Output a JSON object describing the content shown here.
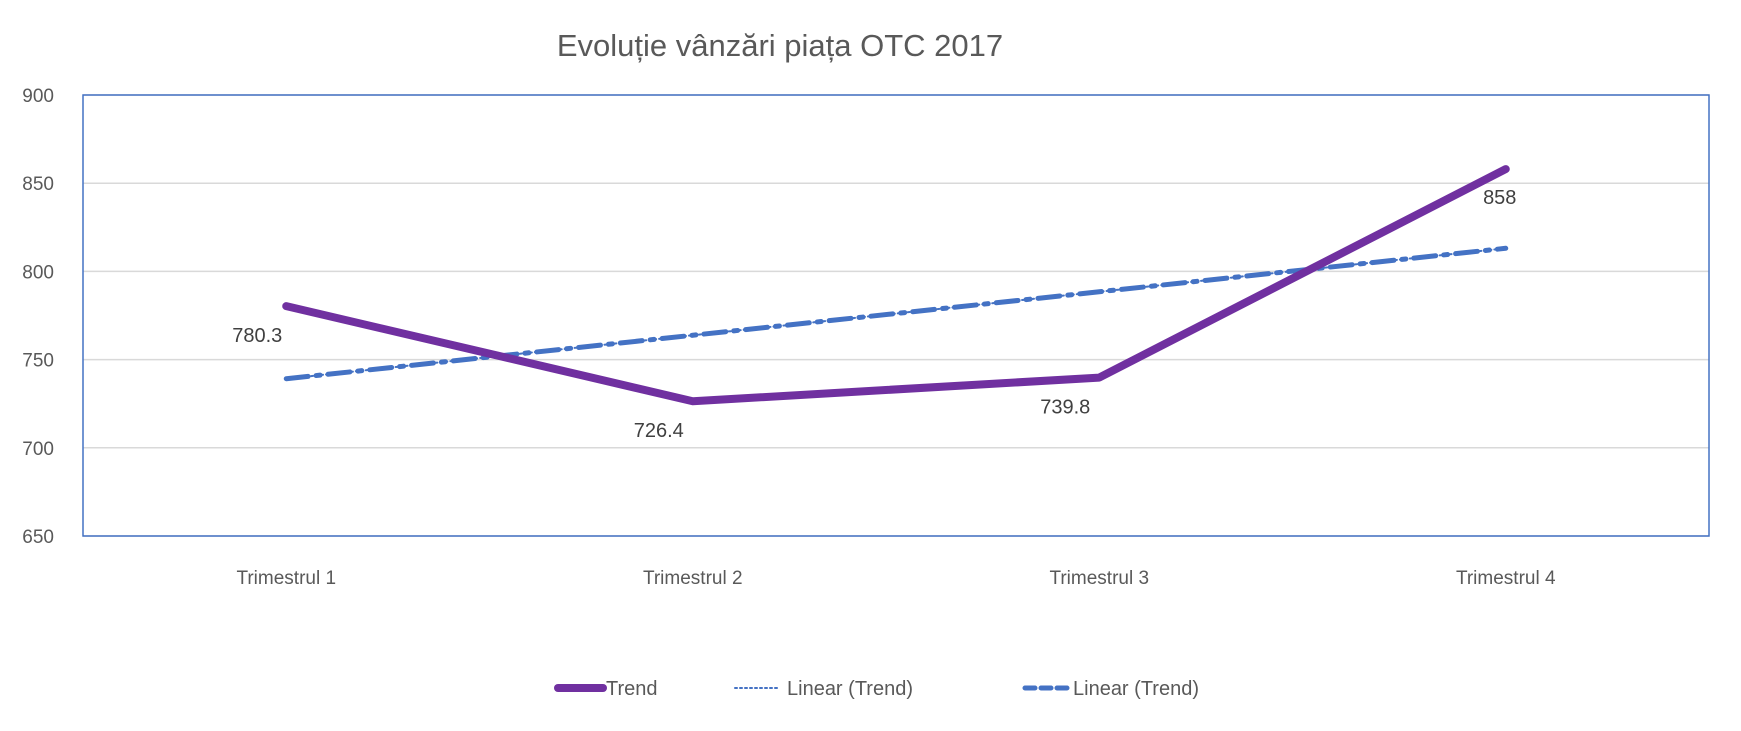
{
  "chart_data": {
    "type": "line",
    "title": "Evoluție vânzări piața OTC 2017",
    "categories": [
      "Trimestrul 1",
      "Trimestrul 2",
      "Trimestrul 3",
      "Trimestrul 4"
    ],
    "series": [
      {
        "name": "Trend",
        "values": [
          780.3,
          726.4,
          739.8,
          858
        ],
        "color": "#7030A0",
        "style": "solid",
        "data_labels": [
          "780.3",
          "726.4",
          "739.8",
          "858"
        ]
      },
      {
        "name": "Linear (Trend)",
        "values": [
          739.15,
          763.8,
          788.45,
          813.1
        ],
        "color": "#4472C4",
        "style": "dotted"
      },
      {
        "name": "Linear (Trend)",
        "values": [
          739.15,
          763.8,
          788.45,
          813.1
        ],
        "color": "#4472C4",
        "style": "dash-dot"
      }
    ],
    "ylim": [
      650,
      900
    ],
    "yticks": [
      "650",
      "700",
      "750",
      "800",
      "850",
      "900"
    ],
    "grid": true,
    "legend": "bottom",
    "plot_border_color": "#4472C4"
  }
}
